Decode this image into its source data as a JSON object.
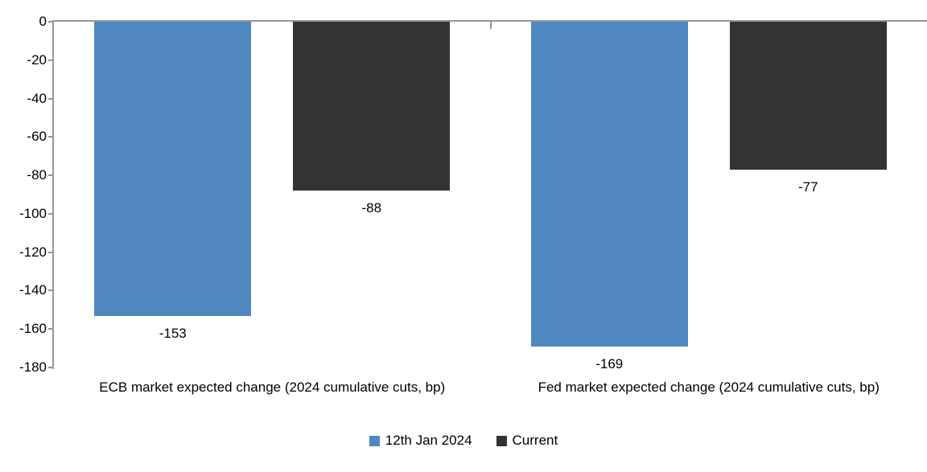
{
  "chart_data": {
    "type": "bar",
    "title": "",
    "categories": [
      "ECB market expected change (2024 cumulative cuts, bp)",
      "Fed market expected change (2024 cumulative cuts, bp)"
    ],
    "series": [
      {
        "name": "12th Jan 2024",
        "color": "#4E88BE",
        "values": [
          -153,
          -169
        ]
      },
      {
        "name": "Current",
        "color": "#333333",
        "values": [
          -88,
          -77
        ]
      }
    ],
    "data_labels": [
      [
        "-153",
        "-169"
      ],
      [
        "-88",
        "-77"
      ]
    ],
    "ylim": [
      -180,
      0
    ],
    "yticks": [
      0,
      -20,
      -40,
      -60,
      -80,
      -100,
      -120,
      -140,
      -160,
      -180
    ],
    "ytick_labels": [
      "0",
      "-20",
      "-40",
      "-60",
      "-80",
      "-100",
      "-120",
      "-140",
      "-160",
      "-180"
    ],
    "grid": false,
    "legend_position": "bottom",
    "axis_color": "#969696",
    "text_color": "#000000"
  }
}
